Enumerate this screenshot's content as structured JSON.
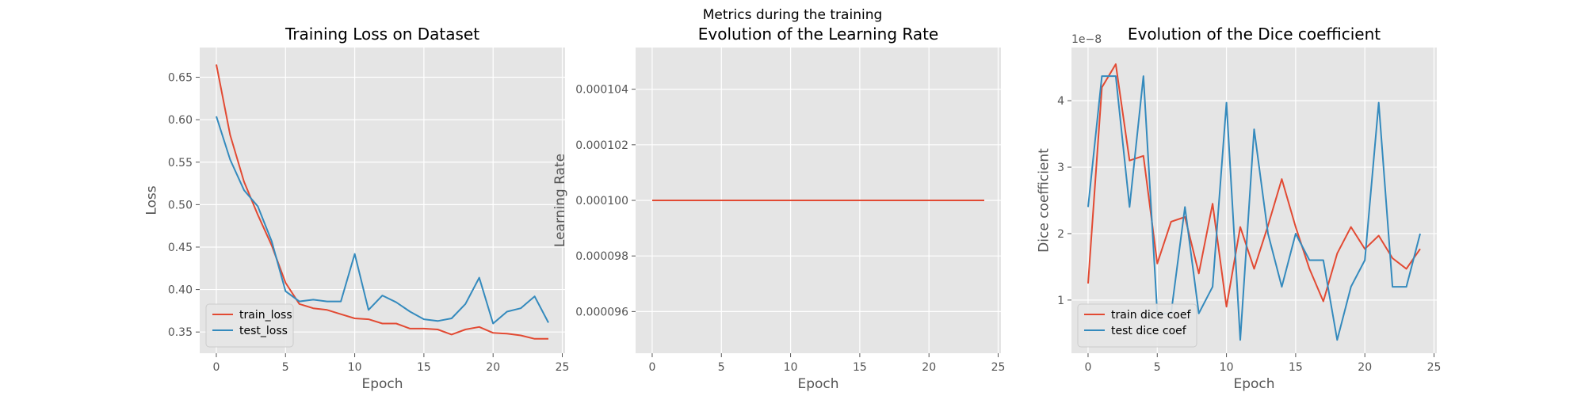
{
  "figure": {
    "suptitle": "Metrics during the training",
    "background": "#ffffff"
  },
  "style": {
    "axes_bg": "#e5e5e5",
    "grid": "#ffffff",
    "tick_text": "#555555",
    "legend_bg": "#e5e5e5"
  },
  "chart_data": [
    {
      "type": "line",
      "title": "Training Loss on Dataset",
      "xlabel": "Epoch",
      "ylabel": "Loss",
      "xlim": [
        -1.2,
        25.2
      ],
      "ylim": [
        0.325,
        0.685
      ],
      "xticks": [
        0,
        5,
        10,
        15,
        20,
        25
      ],
      "yticks": [
        0.35,
        0.4,
        0.45,
        0.5,
        0.55,
        0.6,
        0.65
      ],
      "ytick_labels": [
        "0.35",
        "0.40",
        "0.45",
        "0.50",
        "0.55",
        "0.60",
        "0.65"
      ],
      "grid": true,
      "legend": "lower-left",
      "x": [
        0,
        1,
        2,
        3,
        4,
        5,
        6,
        7,
        8,
        9,
        10,
        11,
        12,
        13,
        14,
        15,
        16,
        17,
        18,
        19,
        20,
        21,
        22,
        23,
        24
      ],
      "series": [
        {
          "name": "train_loss",
          "color": "#E24A33",
          "values": [
            0.665,
            0.582,
            0.527,
            0.488,
            0.452,
            0.408,
            0.383,
            0.378,
            0.376,
            0.371,
            0.366,
            0.365,
            0.36,
            0.36,
            0.354,
            0.354,
            0.353,
            0.347,
            0.353,
            0.356,
            0.349,
            0.348,
            0.346,
            0.342,
            0.342
          ]
        },
        {
          "name": "test_loss",
          "color": "#348ABD",
          "values": [
            0.604,
            0.553,
            0.517,
            0.498,
            0.457,
            0.398,
            0.386,
            0.388,
            0.386,
            0.386,
            0.442,
            0.376,
            0.393,
            0.385,
            0.374,
            0.365,
            0.363,
            0.366,
            0.383,
            0.414,
            0.36,
            0.374,
            0.378,
            0.392,
            0.361
          ]
        }
      ]
    },
    {
      "type": "line",
      "title": "Evolution of the Learning Rate",
      "xlabel": "Epoch",
      "ylabel": "Learning Rate",
      "xlim": [
        -1.2,
        25.2
      ],
      "ylim": [
        9.45e-05,
        0.0001055
      ],
      "xticks": [
        0,
        5,
        10,
        15,
        20,
        25
      ],
      "yticks": [
        9.6e-05,
        9.8e-05,
        0.0001,
        0.000102,
        0.000104
      ],
      "ytick_labels": [
        "0.000096",
        "0.000098",
        "0.000100",
        "0.000102",
        "0.000104"
      ],
      "grid": true,
      "x": [
        0,
        1,
        2,
        3,
        4,
        5,
        6,
        7,
        8,
        9,
        10,
        11,
        12,
        13,
        14,
        15,
        16,
        17,
        18,
        19,
        20,
        21,
        22,
        23,
        24
      ],
      "series": [
        {
          "color": "#E24A33",
          "values": [
            0.0001,
            0.0001,
            0.0001,
            0.0001,
            0.0001,
            0.0001,
            0.0001,
            0.0001,
            0.0001,
            0.0001,
            0.0001,
            0.0001,
            0.0001,
            0.0001,
            0.0001,
            0.0001,
            0.0001,
            0.0001,
            0.0001,
            0.0001,
            0.0001,
            0.0001,
            0.0001,
            0.0001,
            0.0001
          ]
        }
      ]
    },
    {
      "type": "line",
      "title": "Evolution of the Dice coefficient",
      "xlabel": "Epoch",
      "ylabel": "Dice coefficient",
      "offset_text": "1e−8",
      "xlim": [
        -1.2,
        25.2
      ],
      "ylim": [
        0.2,
        4.8
      ],
      "xticks": [
        0,
        5,
        10,
        15,
        20,
        25
      ],
      "yticks": [
        1,
        2,
        3,
        4
      ],
      "ytick_labels": [
        "1",
        "2",
        "3",
        "4"
      ],
      "grid": true,
      "legend": "lower-left",
      "x": [
        0,
        1,
        2,
        3,
        4,
        5,
        6,
        7,
        8,
        9,
        10,
        11,
        12,
        13,
        14,
        15,
        16,
        17,
        18,
        19,
        20,
        21,
        22,
        23,
        24
      ],
      "series": [
        {
          "name": "train dice coef",
          "color": "#E24A33",
          "values": [
            1.25,
            4.2,
            4.55,
            3.1,
            3.17,
            1.55,
            2.18,
            2.25,
            1.4,
            2.45,
            0.9,
            2.1,
            1.47,
            2.12,
            2.82,
            2.1,
            1.47,
            0.98,
            1.7,
            2.1,
            1.77,
            1.97,
            1.63,
            1.47,
            1.77
          ]
        },
        {
          "name": "test dice coef",
          "color": "#348ABD",
          "values": [
            2.4,
            4.37,
            4.37,
            2.4,
            4.37,
            0.8,
            0.8,
            2.4,
            0.8,
            1.2,
            3.97,
            0.4,
            3.57,
            2.0,
            1.2,
            2.0,
            1.6,
            1.6,
            0.4,
            1.2,
            1.6,
            3.97,
            1.2,
            1.2,
            2.0
          ]
        }
      ]
    }
  ]
}
